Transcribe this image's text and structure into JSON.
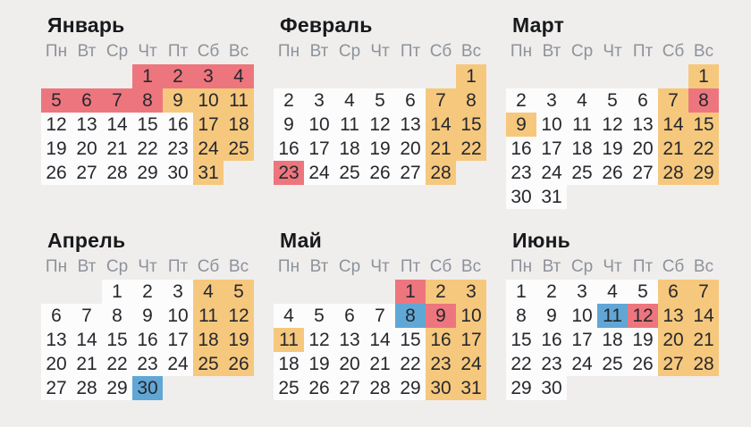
{
  "page": {
    "background": "#efeeec"
  },
  "colors": {
    "workday": "#fcfcfc",
    "holiday": "#ed767e",
    "weekend": "#f6c87d",
    "short_day": "#61a7d6",
    "title_text": "#17191c",
    "weekday_text": "#8d929b",
    "day_text": "#26282d"
  },
  "weekdays": [
    "Пн",
    "Вт",
    "Ср",
    "Чт",
    "Пт",
    "Сб",
    "Вс"
  ],
  "months": [
    {
      "name": "Январь",
      "weeks": [
        [
          null,
          null,
          null,
          {
            "d": 1,
            "c": "holiday"
          },
          {
            "d": 2,
            "c": "holiday"
          },
          {
            "d": 3,
            "c": "holiday"
          },
          {
            "d": 4,
            "c": "holiday"
          }
        ],
        [
          {
            "d": 5,
            "c": "holiday"
          },
          {
            "d": 6,
            "c": "holiday"
          },
          {
            "d": 7,
            "c": "holiday"
          },
          {
            "d": 8,
            "c": "holiday"
          },
          {
            "d": 9,
            "c": "weekend"
          },
          {
            "d": 10,
            "c": "weekend"
          },
          {
            "d": 11,
            "c": "weekend"
          }
        ],
        [
          {
            "d": 12,
            "c": "workday"
          },
          {
            "d": 13,
            "c": "workday"
          },
          {
            "d": 14,
            "c": "workday"
          },
          {
            "d": 15,
            "c": "workday"
          },
          {
            "d": 16,
            "c": "workday"
          },
          {
            "d": 17,
            "c": "weekend"
          },
          {
            "d": 18,
            "c": "weekend"
          }
        ],
        [
          {
            "d": 19,
            "c": "workday"
          },
          {
            "d": 20,
            "c": "workday"
          },
          {
            "d": 21,
            "c": "workday"
          },
          {
            "d": 22,
            "c": "workday"
          },
          {
            "d": 23,
            "c": "workday"
          },
          {
            "d": 24,
            "c": "weekend"
          },
          {
            "d": 25,
            "c": "weekend"
          }
        ],
        [
          {
            "d": 26,
            "c": "workday"
          },
          {
            "d": 27,
            "c": "workday"
          },
          {
            "d": 28,
            "c": "workday"
          },
          {
            "d": 29,
            "c": "workday"
          },
          {
            "d": 30,
            "c": "workday"
          },
          {
            "d": 31,
            "c": "weekend"
          },
          null
        ]
      ]
    },
    {
      "name": "Февраль",
      "weeks": [
        [
          null,
          null,
          null,
          null,
          null,
          null,
          {
            "d": 1,
            "c": "weekend"
          }
        ],
        [
          {
            "d": 2,
            "c": "workday"
          },
          {
            "d": 3,
            "c": "workday"
          },
          {
            "d": 4,
            "c": "workday"
          },
          {
            "d": 5,
            "c": "workday"
          },
          {
            "d": 6,
            "c": "workday"
          },
          {
            "d": 7,
            "c": "weekend"
          },
          {
            "d": 8,
            "c": "weekend"
          }
        ],
        [
          {
            "d": 9,
            "c": "workday"
          },
          {
            "d": 10,
            "c": "workday"
          },
          {
            "d": 11,
            "c": "workday"
          },
          {
            "d": 12,
            "c": "workday"
          },
          {
            "d": 13,
            "c": "workday"
          },
          {
            "d": 14,
            "c": "weekend"
          },
          {
            "d": 15,
            "c": "weekend"
          }
        ],
        [
          {
            "d": 16,
            "c": "workday"
          },
          {
            "d": 17,
            "c": "workday"
          },
          {
            "d": 18,
            "c": "workday"
          },
          {
            "d": 19,
            "c": "workday"
          },
          {
            "d": 20,
            "c": "workday"
          },
          {
            "d": 21,
            "c": "weekend"
          },
          {
            "d": 22,
            "c": "weekend"
          }
        ],
        [
          {
            "d": 23,
            "c": "holiday"
          },
          {
            "d": 24,
            "c": "workday"
          },
          {
            "d": 25,
            "c": "workday"
          },
          {
            "d": 26,
            "c": "workday"
          },
          {
            "d": 27,
            "c": "workday"
          },
          {
            "d": 28,
            "c": "weekend"
          },
          null
        ]
      ]
    },
    {
      "name": "Март",
      "weeks": [
        [
          null,
          null,
          null,
          null,
          null,
          null,
          {
            "d": 1,
            "c": "weekend"
          }
        ],
        [
          {
            "d": 2,
            "c": "workday"
          },
          {
            "d": 3,
            "c": "workday"
          },
          {
            "d": 4,
            "c": "workday"
          },
          {
            "d": 5,
            "c": "workday"
          },
          {
            "d": 6,
            "c": "workday"
          },
          {
            "d": 7,
            "c": "weekend"
          },
          {
            "d": 8,
            "c": "holiday"
          }
        ],
        [
          {
            "d": 9,
            "c": "weekend"
          },
          {
            "d": 10,
            "c": "workday"
          },
          {
            "d": 11,
            "c": "workday"
          },
          {
            "d": 12,
            "c": "workday"
          },
          {
            "d": 13,
            "c": "workday"
          },
          {
            "d": 14,
            "c": "weekend"
          },
          {
            "d": 15,
            "c": "weekend"
          }
        ],
        [
          {
            "d": 16,
            "c": "workday"
          },
          {
            "d": 17,
            "c": "workday"
          },
          {
            "d": 18,
            "c": "workday"
          },
          {
            "d": 19,
            "c": "workday"
          },
          {
            "d": 20,
            "c": "workday"
          },
          {
            "d": 21,
            "c": "weekend"
          },
          {
            "d": 22,
            "c": "weekend"
          }
        ],
        [
          {
            "d": 23,
            "c": "workday"
          },
          {
            "d": 24,
            "c": "workday"
          },
          {
            "d": 25,
            "c": "workday"
          },
          {
            "d": 26,
            "c": "workday"
          },
          {
            "d": 27,
            "c": "workday"
          },
          {
            "d": 28,
            "c": "weekend"
          },
          {
            "d": 29,
            "c": "weekend"
          }
        ],
        [
          {
            "d": 30,
            "c": "workday"
          },
          {
            "d": 31,
            "c": "workday"
          },
          null,
          null,
          null,
          null,
          null
        ]
      ]
    },
    {
      "name": "Апрель",
      "weeks": [
        [
          null,
          null,
          {
            "d": 1,
            "c": "workday"
          },
          {
            "d": 2,
            "c": "workday"
          },
          {
            "d": 3,
            "c": "workday"
          },
          {
            "d": 4,
            "c": "weekend"
          },
          {
            "d": 5,
            "c": "weekend"
          }
        ],
        [
          {
            "d": 6,
            "c": "workday"
          },
          {
            "d": 7,
            "c": "workday"
          },
          {
            "d": 8,
            "c": "workday"
          },
          {
            "d": 9,
            "c": "workday"
          },
          {
            "d": 10,
            "c": "workday"
          },
          {
            "d": 11,
            "c": "weekend"
          },
          {
            "d": 12,
            "c": "weekend"
          }
        ],
        [
          {
            "d": 13,
            "c": "workday"
          },
          {
            "d": 14,
            "c": "workday"
          },
          {
            "d": 15,
            "c": "workday"
          },
          {
            "d": 16,
            "c": "workday"
          },
          {
            "d": 17,
            "c": "workday"
          },
          {
            "d": 18,
            "c": "weekend"
          },
          {
            "d": 19,
            "c": "weekend"
          }
        ],
        [
          {
            "d": 20,
            "c": "workday"
          },
          {
            "d": 21,
            "c": "workday"
          },
          {
            "d": 22,
            "c": "workday"
          },
          {
            "d": 23,
            "c": "workday"
          },
          {
            "d": 24,
            "c": "workday"
          },
          {
            "d": 25,
            "c": "weekend"
          },
          {
            "d": 26,
            "c": "weekend"
          }
        ],
        [
          {
            "d": 27,
            "c": "workday"
          },
          {
            "d": 28,
            "c": "workday"
          },
          {
            "d": 29,
            "c": "workday"
          },
          {
            "d": 30,
            "c": "short_day"
          },
          null,
          null,
          null
        ]
      ]
    },
    {
      "name": "Май",
      "weeks": [
        [
          null,
          null,
          null,
          null,
          {
            "d": 1,
            "c": "holiday"
          },
          {
            "d": 2,
            "c": "weekend"
          },
          {
            "d": 3,
            "c": "weekend"
          }
        ],
        [
          {
            "d": 4,
            "c": "workday"
          },
          {
            "d": 5,
            "c": "workday"
          },
          {
            "d": 6,
            "c": "workday"
          },
          {
            "d": 7,
            "c": "workday"
          },
          {
            "d": 8,
            "c": "short_day"
          },
          {
            "d": 9,
            "c": "holiday"
          },
          {
            "d": 10,
            "c": "weekend"
          }
        ],
        [
          {
            "d": 11,
            "c": "weekend"
          },
          {
            "d": 12,
            "c": "workday"
          },
          {
            "d": 13,
            "c": "workday"
          },
          {
            "d": 14,
            "c": "workday"
          },
          {
            "d": 15,
            "c": "workday"
          },
          {
            "d": 16,
            "c": "weekend"
          },
          {
            "d": 17,
            "c": "weekend"
          }
        ],
        [
          {
            "d": 18,
            "c": "workday"
          },
          {
            "d": 19,
            "c": "workday"
          },
          {
            "d": 20,
            "c": "workday"
          },
          {
            "d": 21,
            "c": "workday"
          },
          {
            "d": 22,
            "c": "workday"
          },
          {
            "d": 23,
            "c": "weekend"
          },
          {
            "d": 24,
            "c": "weekend"
          }
        ],
        [
          {
            "d": 25,
            "c": "workday"
          },
          {
            "d": 26,
            "c": "workday"
          },
          {
            "d": 27,
            "c": "workday"
          },
          {
            "d": 28,
            "c": "workday"
          },
          {
            "d": 29,
            "c": "workday"
          },
          {
            "d": 30,
            "c": "weekend"
          },
          {
            "d": 31,
            "c": "weekend"
          }
        ]
      ]
    },
    {
      "name": "Июнь",
      "weeks": [
        [
          {
            "d": 1,
            "c": "workday"
          },
          {
            "d": 2,
            "c": "workday"
          },
          {
            "d": 3,
            "c": "workday"
          },
          {
            "d": 4,
            "c": "workday"
          },
          {
            "d": 5,
            "c": "workday"
          },
          {
            "d": 6,
            "c": "weekend"
          },
          {
            "d": 7,
            "c": "weekend"
          }
        ],
        [
          {
            "d": 8,
            "c": "workday"
          },
          {
            "d": 9,
            "c": "workday"
          },
          {
            "d": 10,
            "c": "workday"
          },
          {
            "d": 11,
            "c": "short_day"
          },
          {
            "d": 12,
            "c": "holiday"
          },
          {
            "d": 13,
            "c": "weekend"
          },
          {
            "d": 14,
            "c": "weekend"
          }
        ],
        [
          {
            "d": 15,
            "c": "workday"
          },
          {
            "d": 16,
            "c": "workday"
          },
          {
            "d": 17,
            "c": "workday"
          },
          {
            "d": 18,
            "c": "workday"
          },
          {
            "d": 19,
            "c": "workday"
          },
          {
            "d": 20,
            "c": "weekend"
          },
          {
            "d": 21,
            "c": "weekend"
          }
        ],
        [
          {
            "d": 22,
            "c": "workday"
          },
          {
            "d": 23,
            "c": "workday"
          },
          {
            "d": 24,
            "c": "workday"
          },
          {
            "d": 25,
            "c": "workday"
          },
          {
            "d": 26,
            "c": "workday"
          },
          {
            "d": 27,
            "c": "weekend"
          },
          {
            "d": 28,
            "c": "weekend"
          }
        ],
        [
          {
            "d": 29,
            "c": "workday"
          },
          {
            "d": 30,
            "c": "workday"
          },
          null,
          null,
          null,
          null,
          null
        ]
      ]
    }
  ]
}
